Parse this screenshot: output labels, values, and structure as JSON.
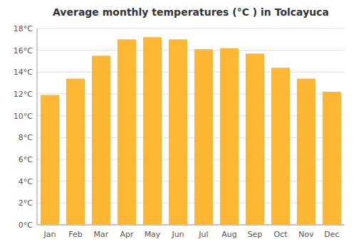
{
  "chart_data": {
    "type": "bar",
    "title": "Average monthly temperatures (°C ) in Tolcayuca",
    "categories": [
      "Jan",
      "Feb",
      "Mar",
      "Apr",
      "May",
      "Jun",
      "Jul",
      "Aug",
      "Sep",
      "Oct",
      "Nov",
      "Dec"
    ],
    "values": [
      11.9,
      13.4,
      15.5,
      17.0,
      17.2,
      17.0,
      16.1,
      16.2,
      15.7,
      14.4,
      13.4,
      12.2
    ],
    "color": "#FFB733",
    "ylim": [
      0,
      18
    ],
    "yticks": [
      {
        "value": 0,
        "label": "0°C"
      },
      {
        "value": 2,
        "label": "2°C"
      },
      {
        "value": 4,
        "label": "4°C"
      },
      {
        "value": 6,
        "label": "6°C"
      },
      {
        "value": 8,
        "label": "8°C"
      },
      {
        "value": 10,
        "label": "10°C"
      },
      {
        "value": 12,
        "label": "12°C"
      },
      {
        "value": 14,
        "label": "14°C"
      },
      {
        "value": 16,
        "label": "16°C"
      },
      {
        "value": 18,
        "label": "18°C"
      }
    ],
    "grid": true
  }
}
